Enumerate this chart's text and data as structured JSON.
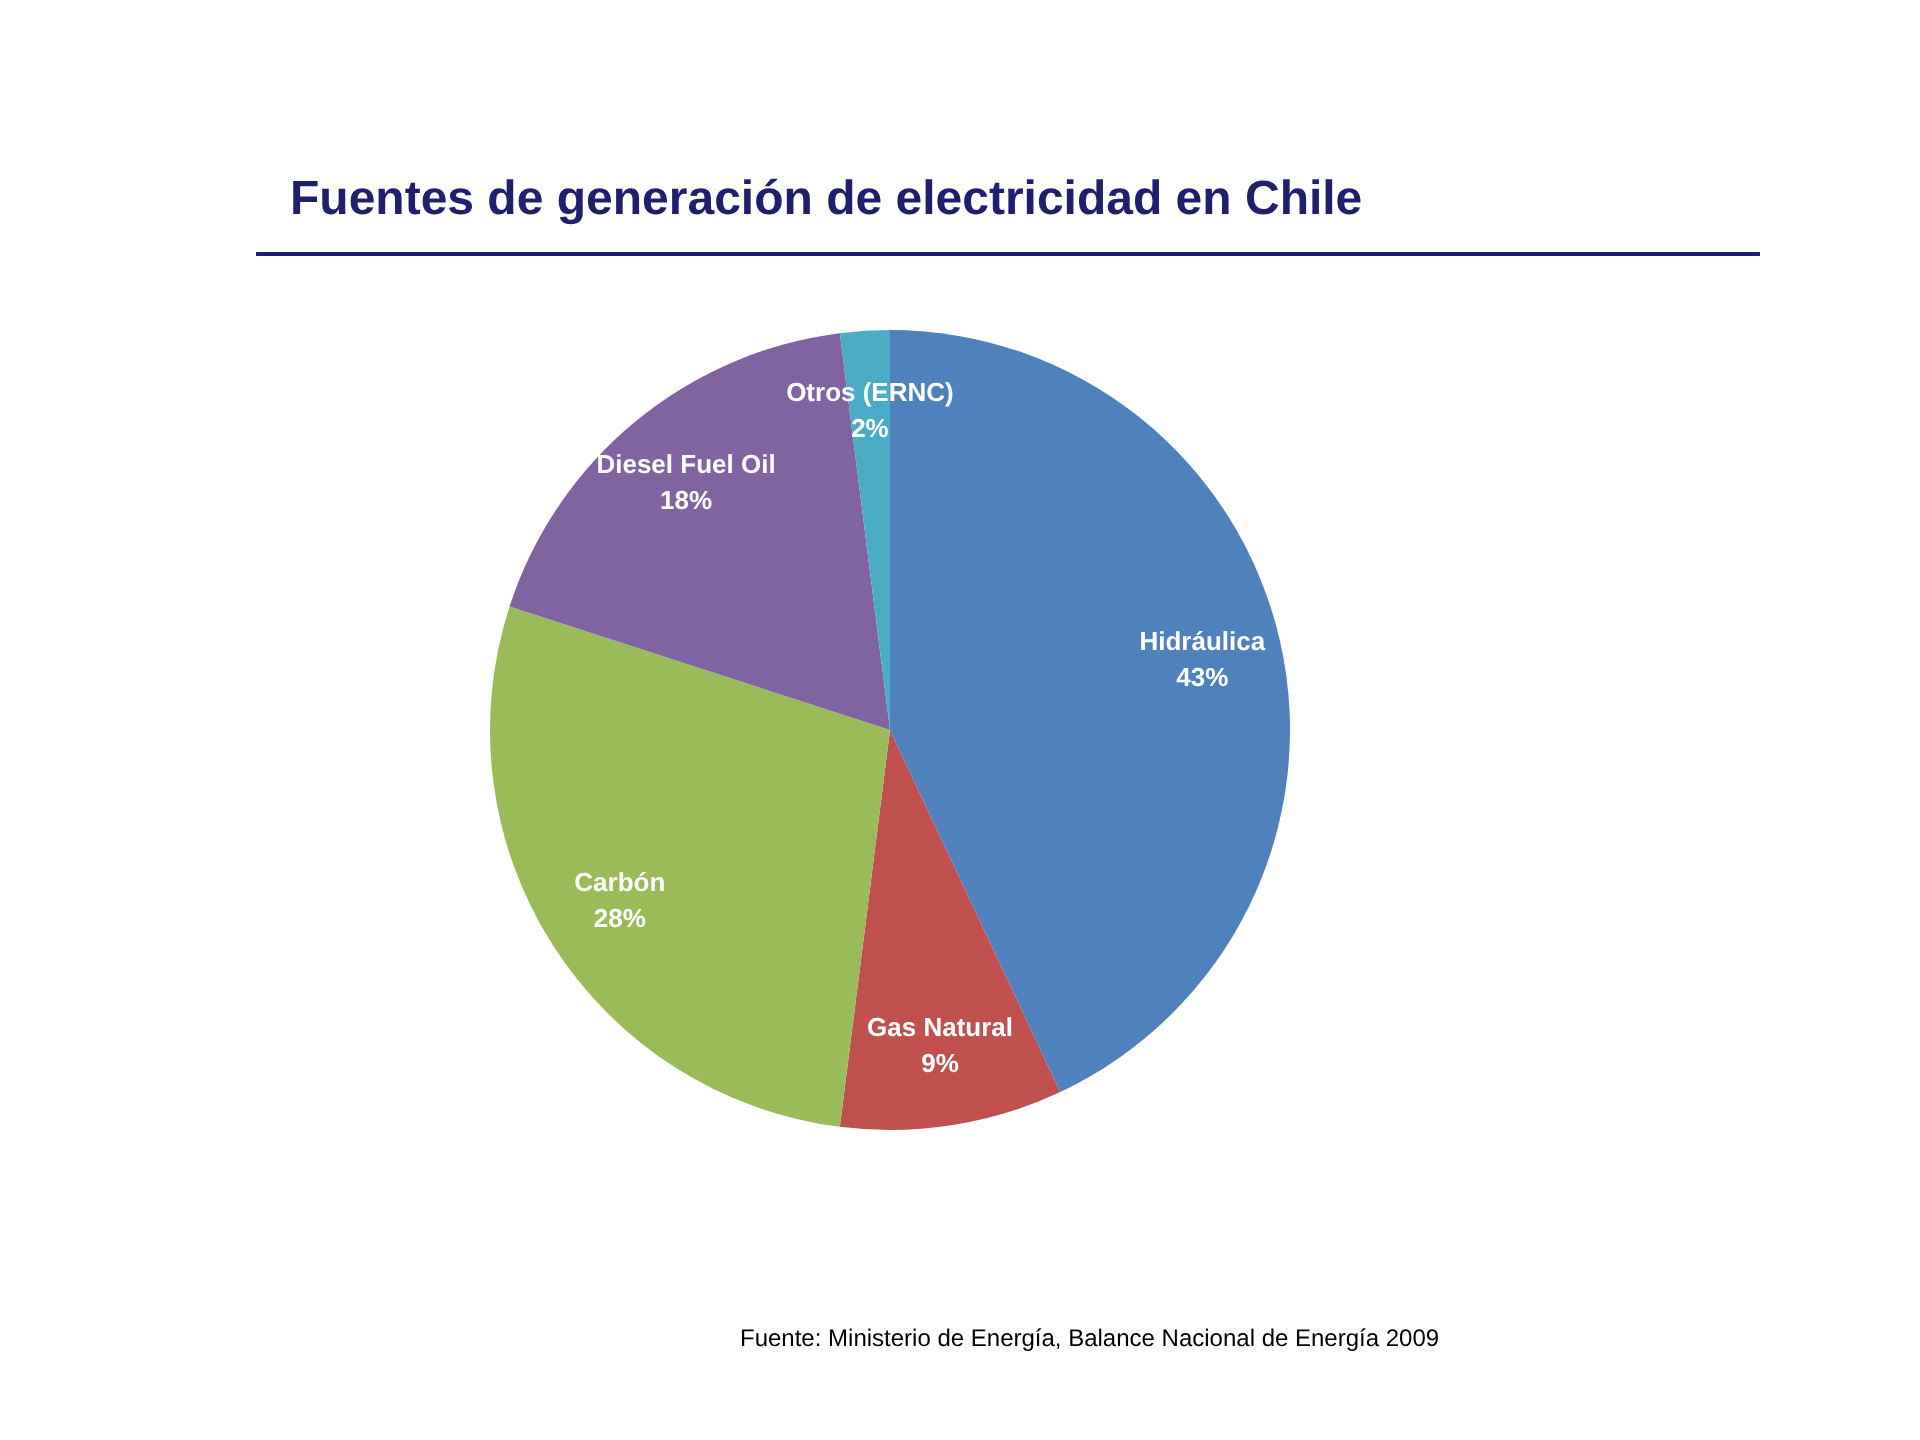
{
  "chart_data": {
    "type": "pie",
    "title": "Fuentes de generación de electricidad en Chile",
    "categories": [
      "Hidráulica",
      "Gas Natural",
      "Carbón",
      "Diesel Fuel Oil",
      "Otros (ERNC)"
    ],
    "values": [
      43,
      9,
      28,
      18,
      2
    ],
    "colors": [
      "#4f81bd",
      "#c0504d",
      "#9bbb59",
      "#8064a2",
      "#4bacc6"
    ],
    "value_labels": [
      "43%",
      "9%",
      "28%",
      "18%",
      "2%"
    ],
    "legend": false,
    "annotations": [
      "Fuente: Ministerio de Energía, Balance Nacional de Energía 2009"
    ]
  }
}
